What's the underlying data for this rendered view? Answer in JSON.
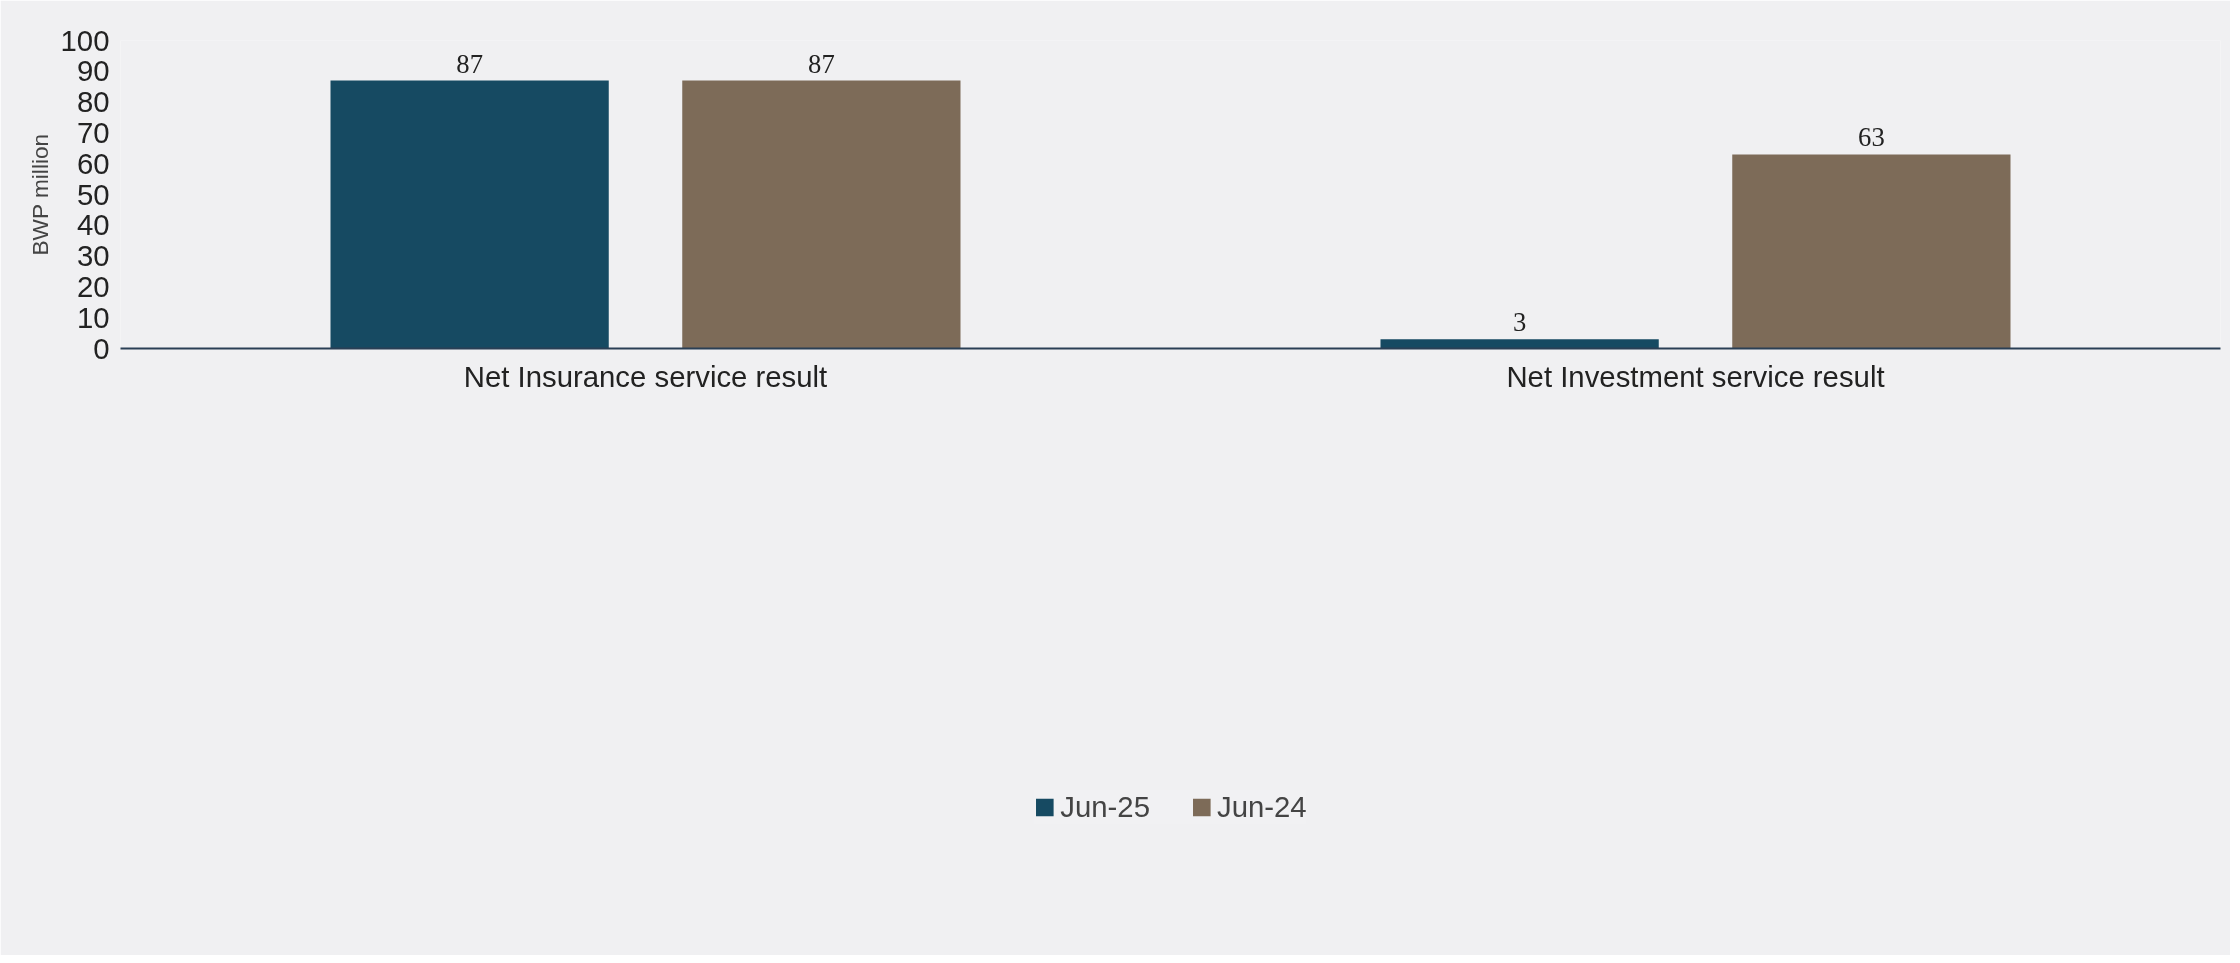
{
  "chart_data": {
    "type": "bar",
    "ylabel": "BWP million",
    "categories": [
      "Net Insurance service result",
      "Net Investment service result"
    ],
    "series": [
      {
        "name": "Jun-25",
        "color": "#164a62",
        "values": [
          87,
          3
        ]
      },
      {
        "name": "Jun-24",
        "color": "#7d6b58",
        "values": [
          87,
          63
        ]
      }
    ],
    "ylim": [
      0,
      100
    ],
    "yticks": [
      0,
      10,
      20,
      30,
      40,
      50,
      60,
      70,
      80,
      90,
      100
    ],
    "grid": false,
    "legend": "bottom",
    "data_labels": true
  }
}
